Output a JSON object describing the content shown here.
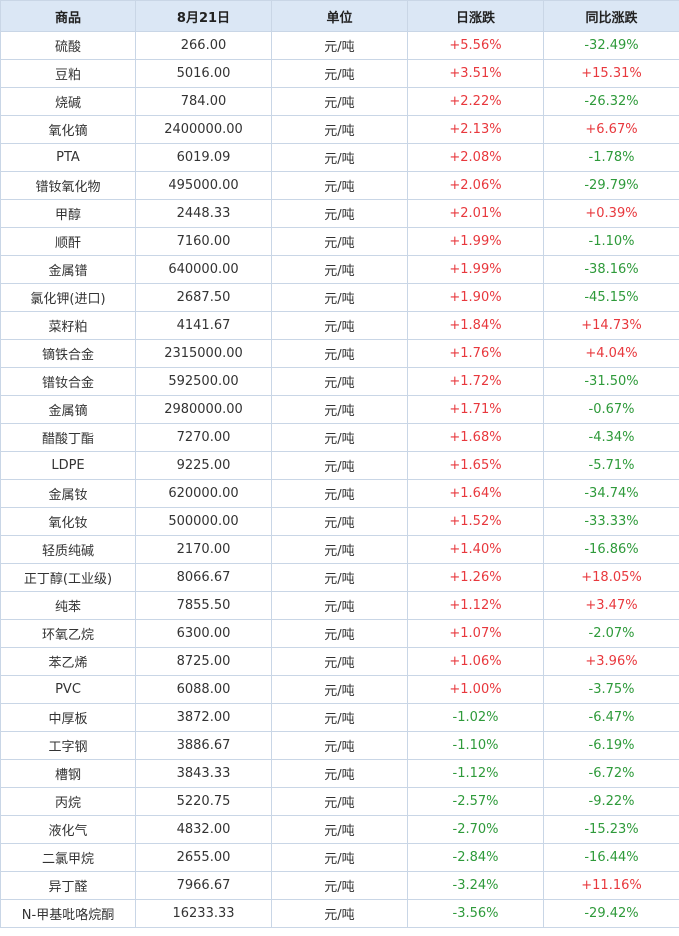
{
  "headers": [
    "商品",
    "8月21日",
    "单位",
    "日涨跌",
    "同比涨跌"
  ],
  "colors": {
    "up": "#e8383d",
    "down": "#2e9a3a",
    "header_bg": "#dbe7f5",
    "border": "#c9d6e6"
  },
  "rows": [
    {
      "name": "硫酸",
      "price": "266.00",
      "unit": "元/吨",
      "day": "+5.56%",
      "yoy": "-32.49%"
    },
    {
      "name": "豆粕",
      "price": "5016.00",
      "unit": "元/吨",
      "day": "+3.51%",
      "yoy": "+15.31%"
    },
    {
      "name": "烧碱",
      "price": "784.00",
      "unit": "元/吨",
      "day": "+2.22%",
      "yoy": "-26.32%"
    },
    {
      "name": "氧化镝",
      "price": "2400000.00",
      "unit": "元/吨",
      "day": "+2.13%",
      "yoy": "+6.67%"
    },
    {
      "name": "PTA",
      "price": "6019.09",
      "unit": "元/吨",
      "day": "+2.08%",
      "yoy": "-1.78%"
    },
    {
      "name": "镨钕氧化物",
      "price": "495000.00",
      "unit": "元/吨",
      "day": "+2.06%",
      "yoy": "-29.79%"
    },
    {
      "name": "甲醇",
      "price": "2448.33",
      "unit": "元/吨",
      "day": "+2.01%",
      "yoy": "+0.39%"
    },
    {
      "name": "顺酐",
      "price": "7160.00",
      "unit": "元/吨",
      "day": "+1.99%",
      "yoy": "-1.10%"
    },
    {
      "name": "金属镨",
      "price": "640000.00",
      "unit": "元/吨",
      "day": "+1.99%",
      "yoy": "-38.16%"
    },
    {
      "name": "氯化钾(进口)",
      "price": "2687.50",
      "unit": "元/吨",
      "day": "+1.90%",
      "yoy": "-45.15%"
    },
    {
      "name": "菜籽粕",
      "price": "4141.67",
      "unit": "元/吨",
      "day": "+1.84%",
      "yoy": "+14.73%"
    },
    {
      "name": "镝铁合金",
      "price": "2315000.00",
      "unit": "元/吨",
      "day": "+1.76%",
      "yoy": "+4.04%"
    },
    {
      "name": "镨钕合金",
      "price": "592500.00",
      "unit": "元/吨",
      "day": "+1.72%",
      "yoy": "-31.50%"
    },
    {
      "name": "金属镝",
      "price": "2980000.00",
      "unit": "元/吨",
      "day": "+1.71%",
      "yoy": "-0.67%"
    },
    {
      "name": "醋酸丁酯",
      "price": "7270.00",
      "unit": "元/吨",
      "day": "+1.68%",
      "yoy": "-4.34%"
    },
    {
      "name": "LDPE",
      "price": "9225.00",
      "unit": "元/吨",
      "day": "+1.65%",
      "yoy": "-5.71%"
    },
    {
      "name": "金属钕",
      "price": "620000.00",
      "unit": "元/吨",
      "day": "+1.64%",
      "yoy": "-34.74%"
    },
    {
      "name": "氧化钕",
      "price": "500000.00",
      "unit": "元/吨",
      "day": "+1.52%",
      "yoy": "-33.33%"
    },
    {
      "name": "轻质纯碱",
      "price": "2170.00",
      "unit": "元/吨",
      "day": "+1.40%",
      "yoy": "-16.86%"
    },
    {
      "name": "正丁醇(工业级)",
      "price": "8066.67",
      "unit": "元/吨",
      "day": "+1.26%",
      "yoy": "+18.05%"
    },
    {
      "name": "纯苯",
      "price": "7855.50",
      "unit": "元/吨",
      "day": "+1.12%",
      "yoy": "+3.47%"
    },
    {
      "name": "环氧乙烷",
      "price": "6300.00",
      "unit": "元/吨",
      "day": "+1.07%",
      "yoy": "-2.07%"
    },
    {
      "name": "苯乙烯",
      "price": "8725.00",
      "unit": "元/吨",
      "day": "+1.06%",
      "yoy": "+3.96%"
    },
    {
      "name": "PVC",
      "price": "6088.00",
      "unit": "元/吨",
      "day": "+1.00%",
      "yoy": "-3.75%"
    },
    {
      "name": "中厚板",
      "price": "3872.00",
      "unit": "元/吨",
      "day": "-1.02%",
      "yoy": "-6.47%"
    },
    {
      "name": "工字钢",
      "price": "3886.67",
      "unit": "元/吨",
      "day": "-1.10%",
      "yoy": "-6.19%"
    },
    {
      "name": "槽钢",
      "price": "3843.33",
      "unit": "元/吨",
      "day": "-1.12%",
      "yoy": "-6.72%"
    },
    {
      "name": "丙烷",
      "price": "5220.75",
      "unit": "元/吨",
      "day": "-2.57%",
      "yoy": "-9.22%"
    },
    {
      "name": "液化气",
      "price": "4832.00",
      "unit": "元/吨",
      "day": "-2.70%",
      "yoy": "-15.23%"
    },
    {
      "name": "二氯甲烷",
      "price": "2655.00",
      "unit": "元/吨",
      "day": "-2.84%",
      "yoy": "-16.44%"
    },
    {
      "name": "异丁醛",
      "price": "7966.67",
      "unit": "元/吨",
      "day": "-3.24%",
      "yoy": "+11.16%"
    },
    {
      "name": "N-甲基吡咯烷酮",
      "price": "16233.33",
      "unit": "元/吨",
      "day": "-3.56%",
      "yoy": "-29.42%"
    }
  ]
}
